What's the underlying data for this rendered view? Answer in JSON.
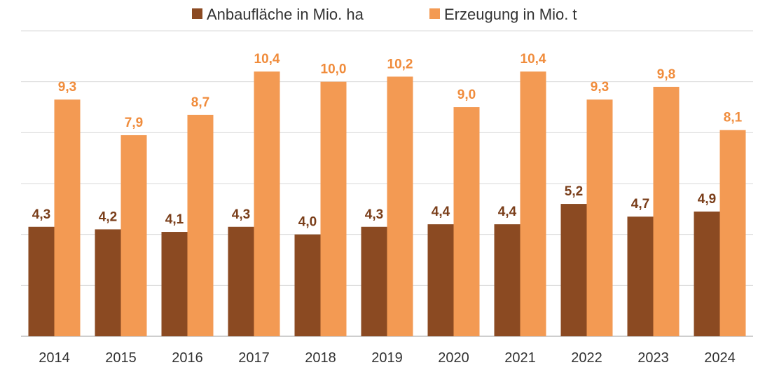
{
  "chart_data": {
    "type": "bar",
    "title": "",
    "xlabel": "",
    "ylabel": "",
    "categories": [
      "2014",
      "2015",
      "2016",
      "2017",
      "2018",
      "2019",
      "2020",
      "2021",
      "2022",
      "2023",
      "2024"
    ],
    "series": [
      {
        "name": "Anbaufläche in Mio. ha",
        "color": "#8B4A22",
        "values": [
          4.3,
          4.2,
          4.1,
          4.3,
          4.0,
          4.3,
          4.4,
          4.4,
          5.2,
          4.7,
          4.9
        ],
        "labels": [
          "4,3",
          "4,2",
          "4,1",
          "4,3",
          "4,0",
          "4,3",
          "4,4",
          "4,4",
          "5,2",
          "4,7",
          "4,9"
        ],
        "label_color": "#7A3E1A"
      },
      {
        "name": "Erzeugung in Mio. t",
        "color": "#F39A53",
        "values": [
          9.3,
          7.9,
          8.7,
          10.4,
          10.0,
          10.2,
          9.0,
          10.4,
          9.3,
          9.8,
          8.1
        ],
        "labels": [
          "9,3",
          "7,9",
          "8,7",
          "10,4",
          "10,0",
          "10,2",
          "9,0",
          "10,4",
          "9,3",
          "9,8",
          "8,1"
        ],
        "label_color": "#F08C3C"
      }
    ],
    "ylim": [
      0,
      12
    ],
    "gridlines": [
      0,
      2,
      4,
      6,
      8,
      10,
      12
    ],
    "grid": true,
    "legend_position": "top"
  }
}
